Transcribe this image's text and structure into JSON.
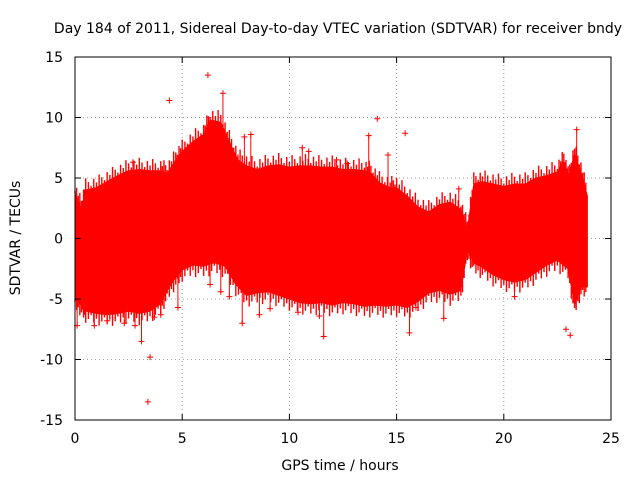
{
  "chart_data": {
    "type": "scatter",
    "title": "Day 184 of 2011, Sidereal Day-to-day VTEC variation (SDTVAR) for receiver bndy",
    "xlabel": "GPS time / hours",
    "ylabel": "SDTVAR / TECUs",
    "xlim": [
      0,
      25
    ],
    "ylim": [
      -15,
      15
    ],
    "xticks": [
      0,
      5,
      10,
      15,
      20,
      25
    ],
    "yticks": [
      -15,
      -10,
      -5,
      0,
      5,
      10,
      15
    ],
    "grid": true,
    "series": [
      {
        "name": "SDTVAR",
        "marker": "plus",
        "color": "#ff0000",
        "upper_envelope": [
          [
            0.0,
            3.7
          ],
          [
            0.3,
            2.5
          ],
          [
            0.5,
            4.0
          ],
          [
            1.0,
            4.2
          ],
          [
            1.5,
            4.7
          ],
          [
            2.0,
            5.2
          ],
          [
            2.5,
            5.6
          ],
          [
            3.0,
            5.7
          ],
          [
            3.5,
            5.6
          ],
          [
            4.0,
            5.6
          ],
          [
            4.3,
            5.4
          ],
          [
            4.7,
            6.5
          ],
          [
            5.0,
            7.2
          ],
          [
            5.5,
            8.0
          ],
          [
            6.0,
            8.6
          ],
          [
            6.3,
            9.8
          ],
          [
            6.8,
            9.6
          ],
          [
            7.2,
            8.0
          ],
          [
            7.6,
            6.5
          ],
          [
            8.0,
            6.0
          ],
          [
            8.5,
            5.7
          ],
          [
            9.0,
            6.0
          ],
          [
            9.5,
            6.1
          ],
          [
            10.0,
            5.9
          ],
          [
            10.5,
            6.0
          ],
          [
            11.0,
            6.0
          ],
          [
            11.5,
            5.9
          ],
          [
            12.0,
            5.9
          ],
          [
            12.5,
            5.7
          ],
          [
            13.0,
            5.7
          ],
          [
            13.5,
            5.6
          ],
          [
            13.8,
            5.4
          ],
          [
            14.2,
            4.6
          ],
          [
            14.7,
            4.2
          ],
          [
            15.0,
            4.2
          ],
          [
            15.5,
            3.5
          ],
          [
            16.0,
            2.6
          ],
          [
            16.5,
            2.2
          ],
          [
            17.0,
            2.8
          ],
          [
            17.5,
            3.0
          ],
          [
            18.0,
            2.4
          ],
          [
            18.3,
            0.8
          ],
          [
            18.6,
            4.5
          ],
          [
            19.0,
            4.7
          ],
          [
            19.5,
            4.5
          ],
          [
            20.0,
            4.3
          ],
          [
            20.5,
            4.5
          ],
          [
            21.0,
            4.5
          ],
          [
            21.5,
            5.0
          ],
          [
            22.0,
            5.2
          ],
          [
            22.5,
            5.5
          ],
          [
            22.8,
            6.4
          ],
          [
            23.0,
            5.0
          ],
          [
            23.3,
            7.0
          ],
          [
            23.6,
            5.5
          ],
          [
            23.9,
            3.5
          ]
        ],
        "lower_envelope": [
          [
            0.0,
            -5.0
          ],
          [
            0.3,
            -5.5
          ],
          [
            0.5,
            -6.0
          ],
          [
            1.0,
            -6.2
          ],
          [
            1.5,
            -6.3
          ],
          [
            2.0,
            -6.2
          ],
          [
            2.5,
            -6.0
          ],
          [
            3.0,
            -6.2
          ],
          [
            3.5,
            -6.0
          ],
          [
            4.0,
            -5.4
          ],
          [
            4.3,
            -4.3
          ],
          [
            4.7,
            -3.2
          ],
          [
            5.0,
            -2.6
          ],
          [
            5.5,
            -2.2
          ],
          [
            6.0,
            -2.3
          ],
          [
            6.5,
            -2.0
          ],
          [
            7.0,
            -2.3
          ],
          [
            7.5,
            -3.8
          ],
          [
            8.0,
            -4.7
          ],
          [
            8.5,
            -4.5
          ],
          [
            9.0,
            -4.4
          ],
          [
            9.5,
            -4.7
          ],
          [
            10.0,
            -5.0
          ],
          [
            10.5,
            -5.3
          ],
          [
            11.0,
            -5.4
          ],
          [
            11.5,
            -5.3
          ],
          [
            12.0,
            -5.5
          ],
          [
            12.5,
            -5.3
          ],
          [
            13.0,
            -5.4
          ],
          [
            13.5,
            -5.6
          ],
          [
            14.0,
            -5.5
          ],
          [
            14.5,
            -5.6
          ],
          [
            15.0,
            -5.5
          ],
          [
            15.5,
            -5.7
          ],
          [
            16.0,
            -5.2
          ],
          [
            16.5,
            -4.5
          ],
          [
            17.0,
            -4.3
          ],
          [
            17.5,
            -4.6
          ],
          [
            18.0,
            -4.3
          ],
          [
            18.3,
            -1.0
          ],
          [
            18.6,
            -2.0
          ],
          [
            19.0,
            -2.4
          ],
          [
            19.5,
            -3.0
          ],
          [
            20.0,
            -3.4
          ],
          [
            20.5,
            -3.6
          ],
          [
            21.0,
            -3.4
          ],
          [
            21.5,
            -2.8
          ],
          [
            22.0,
            -2.2
          ],
          [
            22.5,
            -1.8
          ],
          [
            23.0,
            -2.5
          ],
          [
            23.3,
            -5.5
          ],
          [
            23.6,
            -4.0
          ],
          [
            23.9,
            -4.0
          ]
        ],
        "outliers": [
          [
            0.1,
            -7.2
          ],
          [
            0.9,
            -7.2
          ],
          [
            1.5,
            -6.8
          ],
          [
            2.3,
            -7.0
          ],
          [
            2.8,
            -7.2
          ],
          [
            2.7,
            6.3
          ],
          [
            3.1,
            -8.5
          ],
          [
            3.4,
            -13.5
          ],
          [
            3.5,
            -9.8
          ],
          [
            3.7,
            -6.5
          ],
          [
            4.0,
            -6.3
          ],
          [
            4.4,
            11.4
          ],
          [
            4.8,
            -5.7
          ],
          [
            6.2,
            13.5
          ],
          [
            6.3,
            -3.8
          ],
          [
            6.8,
            -4.4
          ],
          [
            6.9,
            12.0
          ],
          [
            7.2,
            -4.8
          ],
          [
            7.8,
            -7.0
          ],
          [
            7.9,
            8.4
          ],
          [
            8.2,
            8.6
          ],
          [
            8.6,
            -6.3
          ],
          [
            9.1,
            -5.8
          ],
          [
            10.4,
            -6.1
          ],
          [
            10.6,
            7.5
          ],
          [
            10.9,
            7.2
          ],
          [
            11.4,
            -6.4
          ],
          [
            11.6,
            -8.1
          ],
          [
            12.2,
            6.5
          ],
          [
            12.7,
            6.2
          ],
          [
            13.7,
            8.5
          ],
          [
            14.1,
            9.9
          ],
          [
            14.6,
            6.9
          ],
          [
            15.4,
            8.7
          ],
          [
            15.6,
            -7.8
          ],
          [
            15.9,
            -5.7
          ],
          [
            17.2,
            -6.6
          ],
          [
            17.9,
            4.1
          ],
          [
            20.5,
            -4.8
          ],
          [
            22.9,
            -7.5
          ],
          [
            23.1,
            -8.0
          ],
          [
            23.4,
            9.0
          ],
          [
            23.5,
            4.8
          ]
        ]
      }
    ]
  }
}
